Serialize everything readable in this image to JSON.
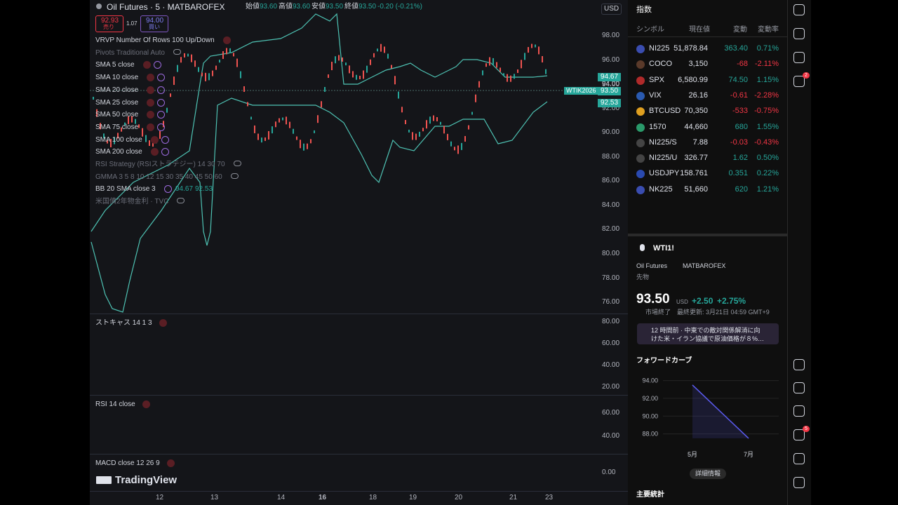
{
  "top_bar": {
    "symbol": "Oil Futures · 5 · MATBAROFEX",
    "open_label": "始値",
    "open": "93.60",
    "high_label": "高値",
    "high": "93.60",
    "low_label": "安値",
    "low": "93.50",
    "close_label": "終値",
    "close": "93.50",
    "change": "-0.20 (-0.21%)",
    "currency": "USD"
  },
  "trade": {
    "sell_price": "92.93",
    "sell_label": "売り",
    "spread": "1.07",
    "buy_price": "94.00",
    "buy_label": "買い"
  },
  "indicators": [
    "VRVP Number Of Rows 100 Up/Down",
    "Pivots Traditional Auto",
    "SMA 5 close",
    "SMA 10 close",
    "SMA 20 close",
    "SMA 25 close",
    "SMA 50 close",
    "SMA 75 close",
    "SMA 100 close",
    "SMA 200 close",
    "RSI Strategy (RSIストラテジー) 14 30 70",
    "GMMA 3 5 8 10 12 15 30 35 40 45 50 60",
    "BB 20 SMA close 3",
    "米国債2年物金利 · TVC"
  ],
  "bb_values": [
    "94.67",
    "92.53"
  ],
  "price_axis": [
    "98.00",
    "96.00",
    "94.00",
    "92.00",
    "90.00",
    "88.00",
    "86.00",
    "84.00",
    "82.00",
    "80.00",
    "78.00",
    "76.00"
  ],
  "price_tags": {
    "upper": "94.67",
    "level": "94.00",
    "last": "93.50",
    "symbol": "WTIK2026",
    "lower": "92.53"
  },
  "panes": [
    {
      "label": "ストキャス 14 1 3",
      "axis": [
        "80.00",
        "60.00",
        "40.00",
        "20.00"
      ]
    },
    {
      "label": "RSI 14 close",
      "axis": [
        "60.00",
        "40.00"
      ]
    },
    {
      "label": "MACD close 12 26 9",
      "axis": [
        "0.00"
      ]
    }
  ],
  "logo": "TradingView",
  "date_axis": [
    "12",
    "13",
    "14",
    "16",
    "18",
    "19",
    "20",
    "21",
    "23"
  ],
  "watchlist": {
    "title": "指数",
    "columns": [
      "シンボル",
      "現在値",
      "変動",
      "変動率"
    ],
    "rows": [
      [
        "NI225",
        "51,878.84",
        "363.40",
        "0.71%"
      ],
      [
        "COCO",
        "3,150",
        "-68",
        "-2.11%"
      ],
      [
        "SPX",
        "6,580.99",
        "74.50",
        "1.15%"
      ],
      [
        "VIX",
        "26.16",
        "-0.61",
        "-2.28%"
      ],
      [
        "BTCUSD",
        "70,350",
        "-533",
        "-0.75%"
      ],
      [
        "1570",
        "44,660",
        "680",
        "1.55%"
      ],
      [
        "NI225/S",
        "7.88",
        "-0.03",
        "-0.43%"
      ],
      [
        "NI225/U",
        "326.77",
        "1.62",
        "0.50%"
      ],
      [
        "USDJPY",
        "158.761",
        "0.351",
        "0.22%"
      ],
      [
        "NK225",
        "51,660",
        "620",
        "1.21%"
      ]
    ]
  },
  "detail": {
    "symbol": "WTI1!",
    "name": "Oil Futures",
    "exchange": "MATBAROFEX",
    "kind": "先物",
    "price": "93.50",
    "currency": "USD",
    "change": "+2.50",
    "change_pct": "+2.75%",
    "status": "市場終了",
    "updated": "最終更新: 3月21日 04:59 GMT+9",
    "news": "12 時間前 · 中東での敵対関係解消に向けた米・イラン協議で原油価格が８%…",
    "button": "詳細情報",
    "stats_title": "主要統計"
  },
  "forward_curve": {
    "type": "line",
    "title": "フォワードカーブ",
    "categories": [
      "5月",
      "7月"
    ],
    "values": [
      93.5,
      87.5
    ],
    "ylim": [
      87.1,
      94.6
    ],
    "yticks": [
      {
        "value": 88,
        "label": "88.00"
      },
      {
        "value": 90,
        "label": "90.00"
      },
      {
        "value": 92,
        "label": "92.00"
      },
      {
        "value": 94,
        "label": "94.00"
      }
    ]
  },
  "badges": [
    "2",
    "5"
  ]
}
